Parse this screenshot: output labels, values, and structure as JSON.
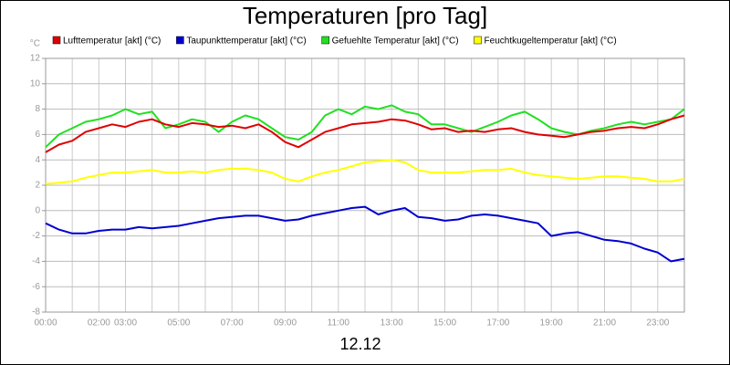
{
  "chart_data": {
    "type": "line",
    "title": "Temperaturen [pro Tag]",
    "ylabel": "°C",
    "xlabel": "12.12",
    "x": [
      0,
      0.5,
      1,
      1.5,
      2,
      2.5,
      3,
      3.5,
      4,
      4.5,
      5,
      5.5,
      6,
      6.5,
      7,
      7.5,
      8,
      8.5,
      9,
      9.5,
      10,
      10.5,
      11,
      11.5,
      12,
      12.5,
      13,
      13.5,
      14,
      14.5,
      15,
      15.5,
      16,
      16.5,
      17,
      17.5,
      18,
      18.5,
      19,
      19.5,
      20,
      20.5,
      21,
      21.5,
      22,
      22.5,
      23,
      23.5,
      24
    ],
    "series": [
      {
        "name": "Lufttemperatur [akt] (°C)",
        "color": "#e00000",
        "values": [
          4.6,
          5.2,
          5.5,
          6.2,
          6.5,
          6.8,
          6.6,
          7.0,
          7.2,
          6.8,
          6.6,
          6.9,
          6.8,
          6.6,
          6.7,
          6.5,
          6.8,
          6.2,
          5.4,
          5.0,
          5.6,
          6.2,
          6.5,
          6.8,
          6.9,
          7.0,
          7.2,
          7.1,
          6.8,
          6.4,
          6.5,
          6.2,
          6.3,
          6.2,
          6.4,
          6.5,
          6.2,
          6.0,
          5.9,
          5.8,
          6.0,
          6.2,
          6.3,
          6.5,
          6.6,
          6.5,
          6.8,
          7.2,
          7.5
        ]
      },
      {
        "name": "Taupunkttemperatur [akt] (°C)",
        "color": "#0000d0",
        "values": [
          -1.0,
          -1.5,
          -1.8,
          -1.8,
          -1.6,
          -1.5,
          -1.5,
          -1.3,
          -1.4,
          -1.3,
          -1.2,
          -1.0,
          -0.8,
          -0.6,
          -0.5,
          -0.4,
          -0.4,
          -0.6,
          -0.8,
          -0.7,
          -0.4,
          -0.2,
          0.0,
          0.2,
          0.3,
          -0.3,
          0.0,
          0.2,
          -0.5,
          -0.6,
          -0.8,
          -0.7,
          -0.4,
          -0.3,
          -0.4,
          -0.6,
          -0.8,
          -1.0,
          -2.0,
          -1.8,
          -1.7,
          -2.0,
          -2.3,
          -2.4,
          -2.6,
          -3.0,
          -3.3,
          -4.0,
          -3.8
        ]
      },
      {
        "name": "Gefuehlte Temperatur [akt] (°C)",
        "color": "#20e020",
        "values": [
          5.0,
          6.0,
          6.5,
          7.0,
          7.2,
          7.5,
          8.0,
          7.6,
          7.8,
          6.5,
          6.8,
          7.2,
          7.0,
          6.2,
          7.0,
          7.5,
          7.2,
          6.5,
          5.8,
          5.6,
          6.2,
          7.5,
          8.0,
          7.6,
          8.2,
          8.0,
          8.3,
          7.8,
          7.6,
          6.8,
          6.8,
          6.5,
          6.2,
          6.6,
          7.0,
          7.5,
          7.8,
          7.2,
          6.5,
          6.2,
          6.0,
          6.3,
          6.5,
          6.8,
          7.0,
          6.8,
          7.0,
          7.2,
          8.0
        ]
      },
      {
        "name": "Feuchtkugeltemperatur [akt] (°C)",
        "color": "#ffff00",
        "values": [
          2.1,
          2.2,
          2.3,
          2.6,
          2.8,
          3.0,
          3.0,
          3.1,
          3.2,
          3.0,
          3.0,
          3.1,
          3.0,
          3.2,
          3.3,
          3.3,
          3.2,
          3.0,
          2.5,
          2.3,
          2.7,
          3.0,
          3.2,
          3.5,
          3.8,
          3.9,
          4.0,
          3.8,
          3.2,
          3.0,
          3.0,
          3.0,
          3.1,
          3.2,
          3.2,
          3.3,
          3.0,
          2.8,
          2.7,
          2.6,
          2.5,
          2.6,
          2.7,
          2.7,
          2.6,
          2.5,
          2.3,
          2.3,
          2.5
        ]
      }
    ],
    "xlim": [
      0,
      24
    ],
    "xticks": [
      {
        "value": 0,
        "label": "00:00"
      },
      {
        "value": 1,
        "label": null
      },
      {
        "value": 2,
        "label": "02:00"
      },
      {
        "value": 3,
        "label": "03:00"
      },
      {
        "value": 4,
        "label": null
      },
      {
        "value": 5,
        "label": "05:00"
      },
      {
        "value": 6,
        "label": null
      },
      {
        "value": 7,
        "label": "07:00"
      },
      {
        "value": 8,
        "label": null
      },
      {
        "value": 9,
        "label": "09:00"
      },
      {
        "value": 10,
        "label": null
      },
      {
        "value": 11,
        "label": "11:00"
      },
      {
        "value": 12,
        "label": null
      },
      {
        "value": 13,
        "label": "13:00"
      },
      {
        "value": 14,
        "label": null
      },
      {
        "value": 15,
        "label": "15:00"
      },
      {
        "value": 16,
        "label": null
      },
      {
        "value": 17,
        "label": "17:00"
      },
      {
        "value": 18,
        "label": null
      },
      {
        "value": 19,
        "label": "19:00"
      },
      {
        "value": 20,
        "label": null
      },
      {
        "value": 21,
        "label": "21:00"
      },
      {
        "value": 22,
        "label": null
      },
      {
        "value": 23,
        "label": "23:00"
      },
      {
        "value": 24,
        "label": null
      }
    ],
    "ylim": [
      -8,
      12
    ],
    "yticks": [
      -8,
      -6,
      -4,
      -2,
      0,
      2,
      4,
      6,
      8,
      10,
      12
    ],
    "grid": true
  }
}
